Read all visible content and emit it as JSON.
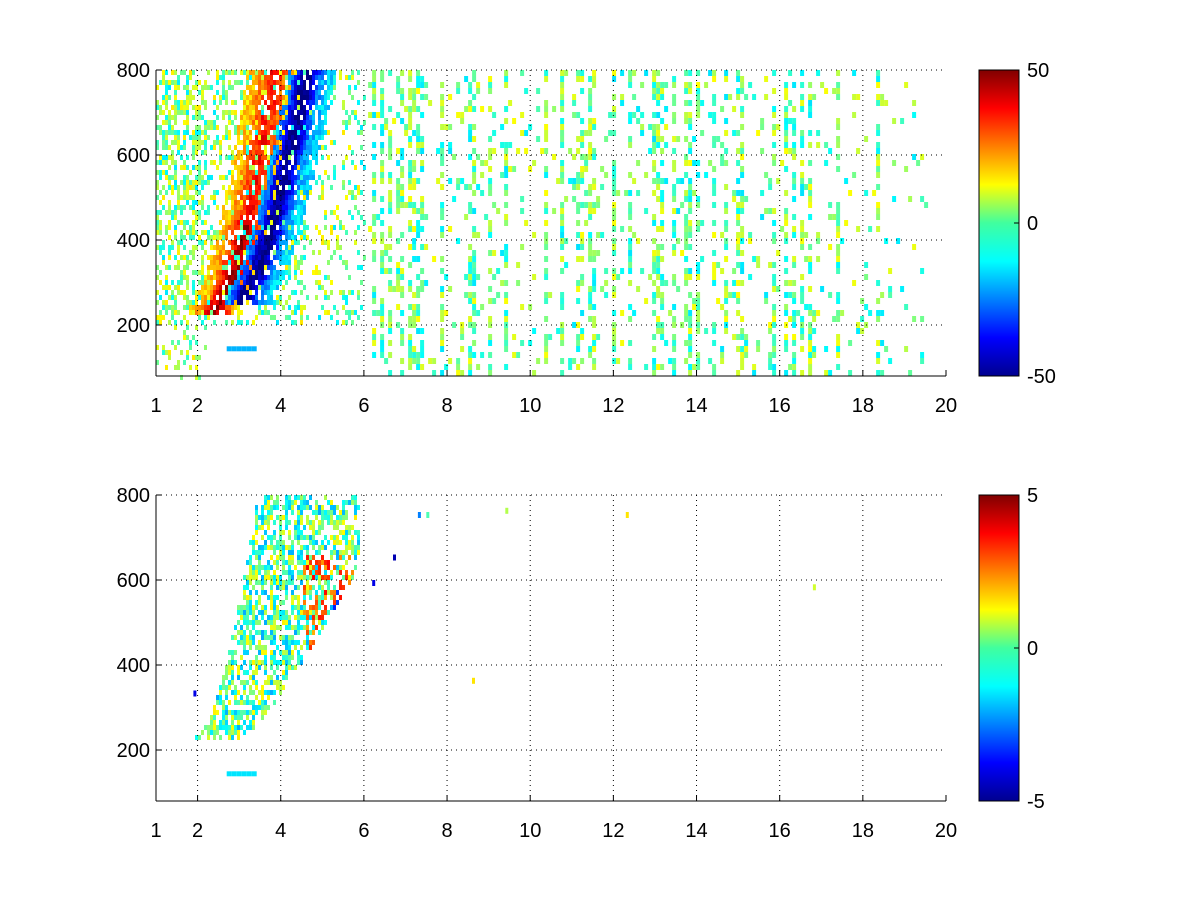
{
  "chart_data": [
    {
      "type": "heatmap",
      "title": "",
      "xlabel": "",
      "ylabel": "",
      "xlim": [
        1,
        20
      ],
      "ylim": [
        80,
        800
      ],
      "grid": true,
      "grid_style": "dotted",
      "x_ticks": [
        1,
        2,
        4,
        6,
        8,
        10,
        12,
        14,
        16,
        18,
        20
      ],
      "y_ticks": [
        200,
        400,
        600,
        800
      ],
      "colorbar": {
        "colormap": "jet",
        "min": -50,
        "max": 50,
        "ticks": [
          50,
          0,
          -50
        ]
      },
      "features": [
        {
          "description": "positive ridge",
          "x_start": 2.0,
          "x_end": 4.2,
          "y_low": 250,
          "y_high": 800,
          "value": 35
        },
        {
          "description": "negative ridge",
          "x_start": 2.8,
          "x_end": 5.0,
          "y_low": 260,
          "y_high": 800,
          "value": -40
        },
        {
          "description": "weak noise columns",
          "x_start": 6,
          "x_end": 19.5,
          "value_range": [
            -15,
            10
          ]
        },
        {
          "description": "low patch",
          "x": 3.0,
          "y": 140,
          "value": -20
        }
      ]
    },
    {
      "type": "heatmap",
      "title": "",
      "xlabel": "",
      "ylabel": "",
      "xlim": [
        1,
        20
      ],
      "ylim": [
        80,
        800
      ],
      "grid": true,
      "grid_style": "dotted",
      "x_ticks": [
        1,
        2,
        4,
        6,
        8,
        10,
        12,
        14,
        16,
        18,
        20
      ],
      "y_ticks": [
        200,
        400,
        600,
        800
      ],
      "colorbar": {
        "colormap": "jet",
        "min": -5,
        "max": 5,
        "ticks": [
          5,
          0,
          -5
        ]
      },
      "features": [
        {
          "description": "mixed ridge region",
          "x_start": 1.8,
          "x_end": 5.8,
          "y_low": 230,
          "y_high": 800,
          "value_range": [
            -2,
            1.5
          ]
        },
        {
          "description": "positive band",
          "x_start": 4.5,
          "x_end": 5.5,
          "y_low": 380,
          "y_high": 660,
          "value": 3
        },
        {
          "description": "negative band",
          "x_start": 5.2,
          "x_end": 5.9,
          "y_low": 400,
          "y_high": 580,
          "value": -3.5
        },
        {
          "description": "low patch",
          "x": 3.0,
          "y": 140,
          "value": -1.5
        }
      ]
    }
  ]
}
